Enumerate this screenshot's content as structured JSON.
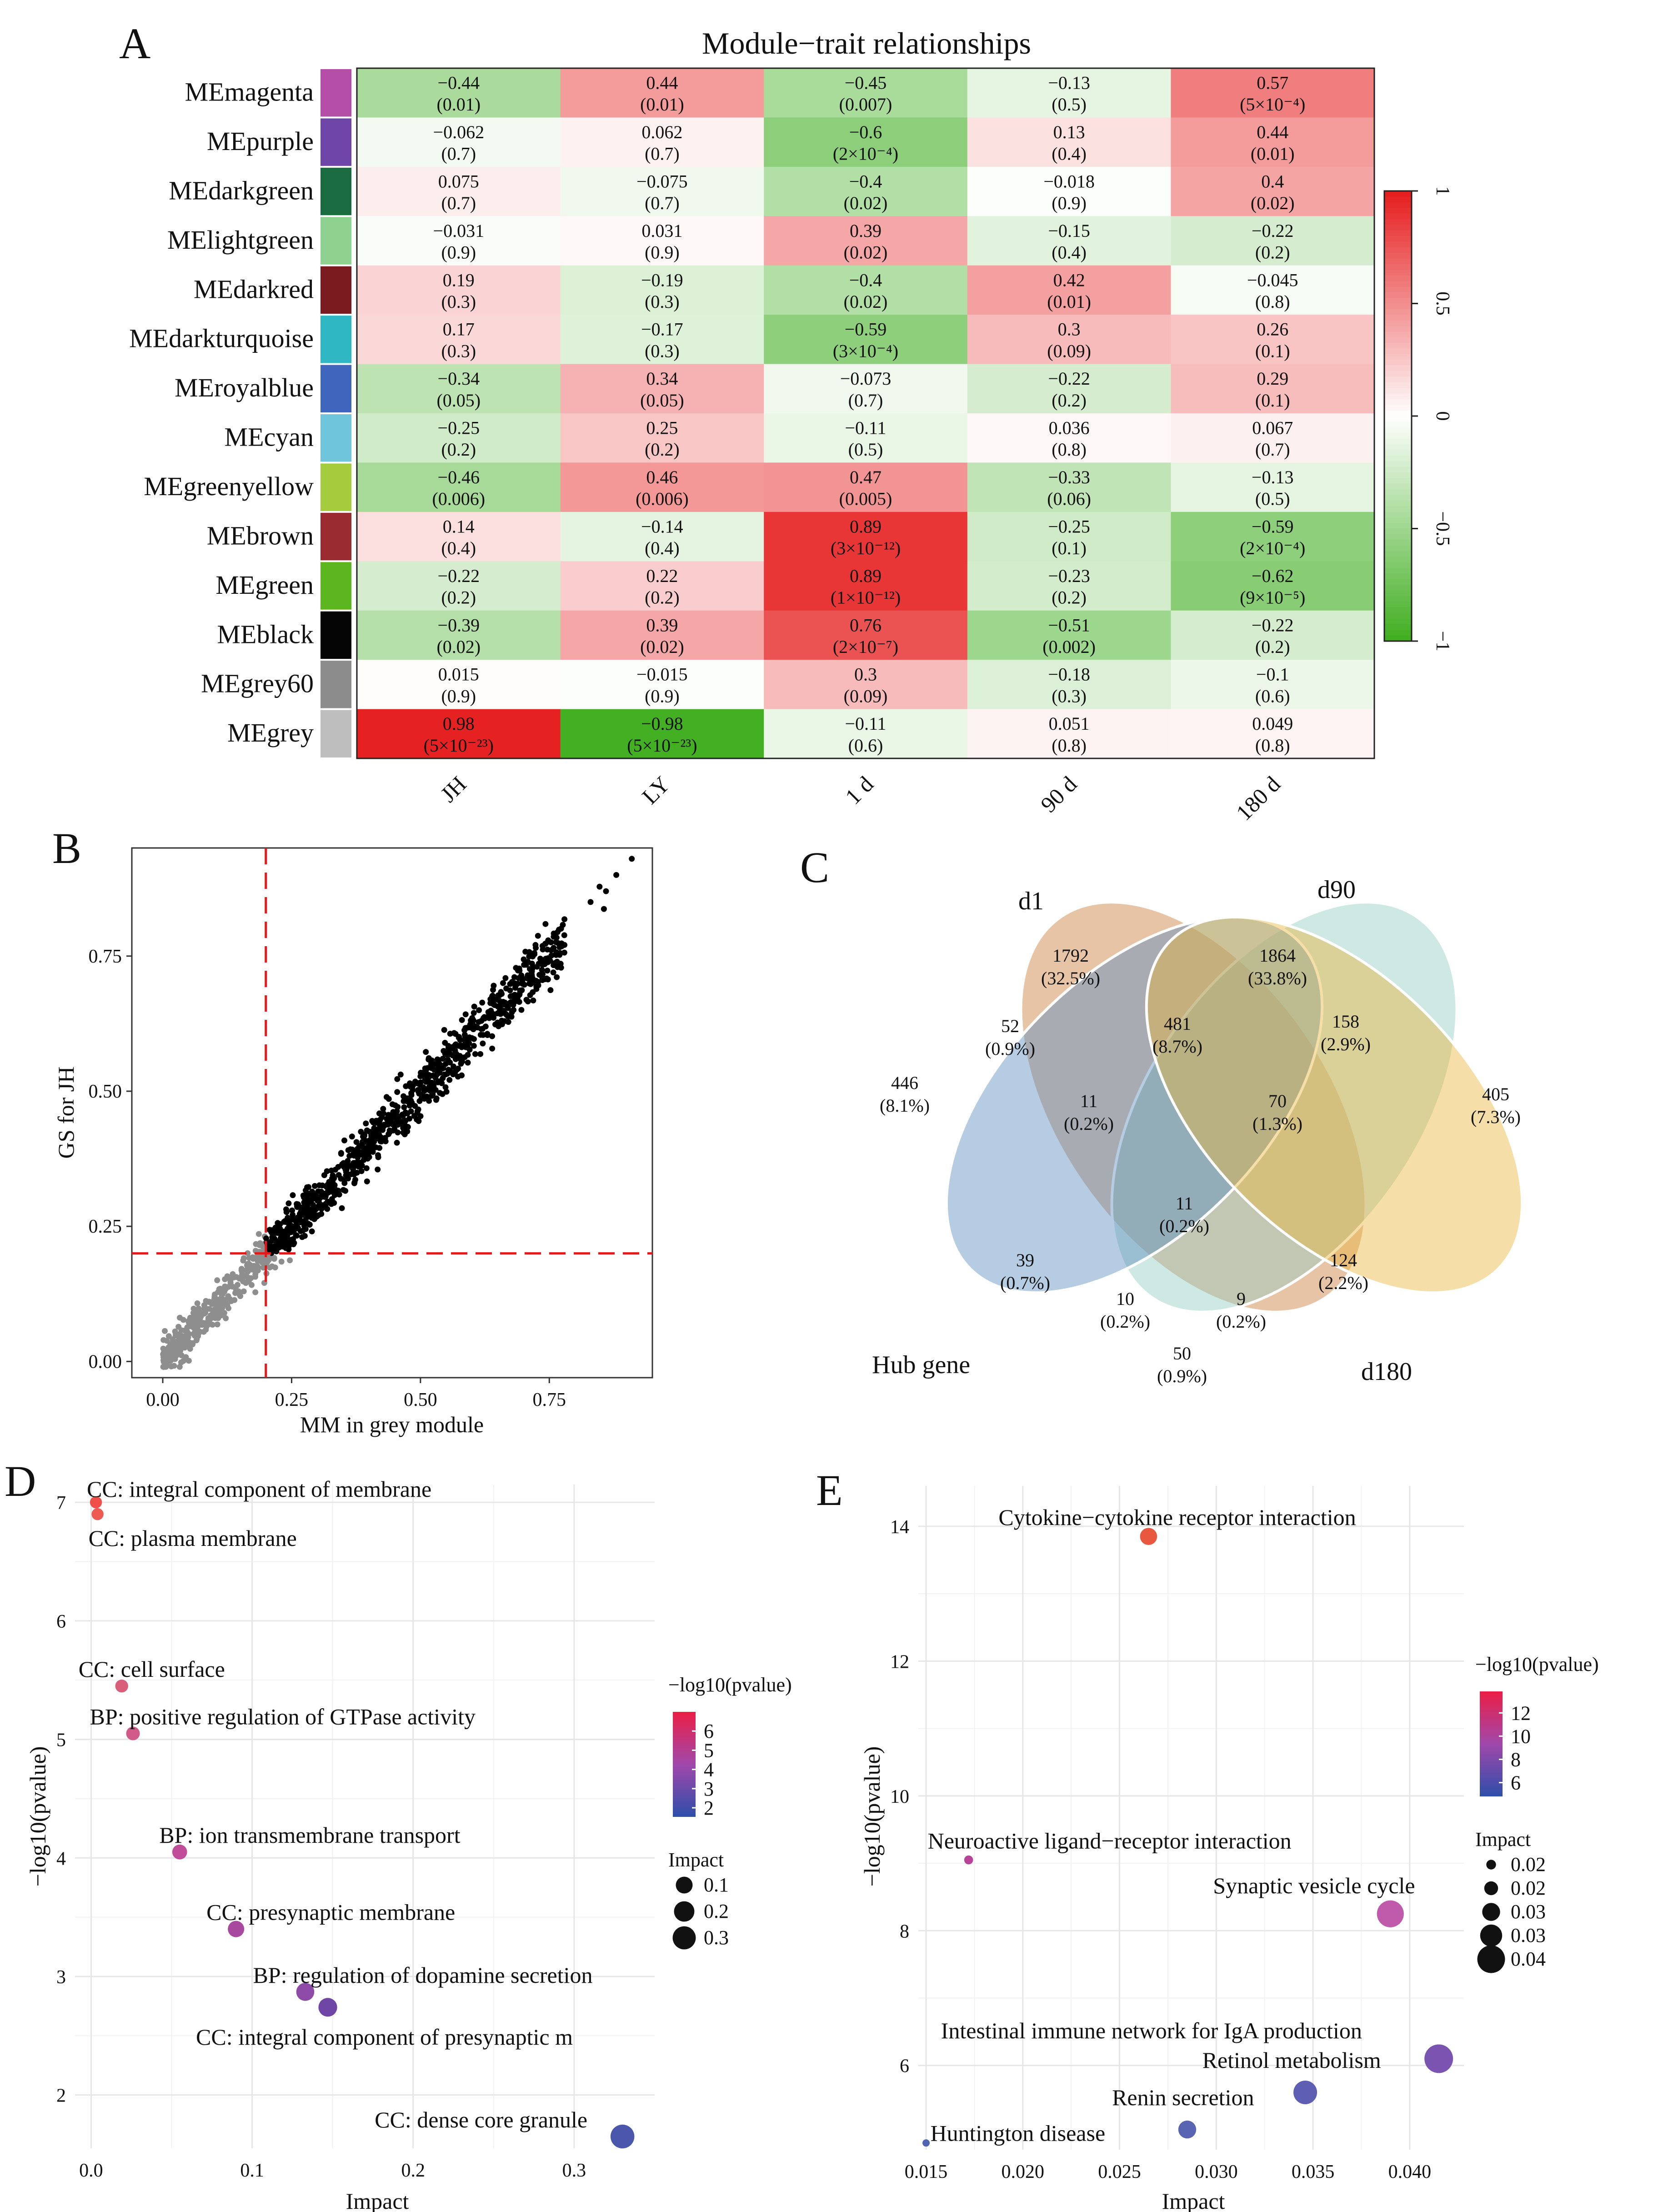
{
  "panels": {
    "A": {
      "letter": "A",
      "chart_data": {
        "type": "heatmap",
        "title": "Module−trait relationships",
        "rows": [
          "MEmagenta",
          "MEpurple",
          "MEdarkgreen",
          "MElightgreen",
          "MEdarkred",
          "MEdarkturquoise",
          "MEroyalblue",
          "MEcyan",
          "MEgreenyellow",
          "MEbrown",
          "MEgreen",
          "MEblack",
          "MEgrey60",
          "MEgrey"
        ],
        "row_colors": [
          "#b44ea7",
          "#6f45a7",
          "#1a6b3f",
          "#8fd18f",
          "#7a1b1f",
          "#2fb8c4",
          "#3f66bc",
          "#6fc6dc",
          "#a4cc3c",
          "#9a2b31",
          "#5cb61f",
          "#050505",
          "#8c8c8c",
          "#bebebe"
        ],
        "columns": [
          "JH",
          "LY",
          "1 d",
          "90 d",
          "180 d"
        ],
        "values": [
          [
            -0.44,
            0.44,
            -0.45,
            -0.13,
            0.57
          ],
          [
            -0.062,
            0.062,
            -0.6,
            0.13,
            0.44
          ],
          [
            0.075,
            -0.075,
            -0.4,
            -0.018,
            0.4
          ],
          [
            -0.031,
            0.031,
            0.39,
            -0.15,
            -0.22
          ],
          [
            0.19,
            -0.19,
            -0.4,
            0.42,
            -0.045
          ],
          [
            0.17,
            -0.17,
            -0.59,
            0.3,
            0.26
          ],
          [
            -0.34,
            0.34,
            -0.073,
            -0.22,
            0.29
          ],
          [
            -0.25,
            0.25,
            -0.11,
            0.036,
            0.067
          ],
          [
            -0.46,
            0.46,
            0.47,
            -0.33,
            -0.13
          ],
          [
            0.14,
            -0.14,
            0.89,
            -0.25,
            -0.59
          ],
          [
            -0.22,
            0.22,
            0.89,
            -0.23,
            -0.62
          ],
          [
            -0.39,
            0.39,
            0.76,
            -0.51,
            -0.22
          ],
          [
            0.015,
            -0.015,
            0.3,
            -0.18,
            -0.1
          ],
          [
            0.98,
            -0.98,
            -0.11,
            0.051,
            0.049
          ]
        ],
        "value_labels": [
          [
            "−0.44",
            "0.44",
            "−0.45",
            "−0.13",
            "0.57"
          ],
          [
            "−0.062",
            "0.062",
            "−0.6",
            "0.13",
            "0.44"
          ],
          [
            "0.075",
            "−0.075",
            "−0.4",
            "−0.018",
            "0.4"
          ],
          [
            "−0.031",
            "0.031",
            "0.39",
            "−0.15",
            "−0.22"
          ],
          [
            "0.19",
            "−0.19",
            "−0.4",
            "0.42",
            "−0.045"
          ],
          [
            "0.17",
            "−0.17",
            "−0.59",
            "0.3",
            "0.26"
          ],
          [
            "−0.34",
            "0.34",
            "−0.073",
            "−0.22",
            "0.29"
          ],
          [
            "−0.25",
            "0.25",
            "−0.11",
            "0.036",
            "0.067"
          ],
          [
            "−0.46",
            "0.46",
            "0.47",
            "−0.33",
            "−0.13"
          ],
          [
            "0.14",
            "−0.14",
            "0.89",
            "−0.25",
            "−0.59"
          ],
          [
            "−0.22",
            "0.22",
            "0.89",
            "−0.23",
            "−0.62"
          ],
          [
            "−0.39",
            "0.39",
            "0.76",
            "−0.51",
            "−0.22"
          ],
          [
            "0.015",
            "−0.015",
            "0.3",
            "−0.18",
            "−0.1"
          ],
          [
            "0.98",
            "−0.98",
            "−0.11",
            "0.051",
            "0.049"
          ]
        ],
        "pvalues": [
          [
            "(0.01)",
            "(0.01)",
            "(0.007)",
            "(0.5)",
            "(5×10⁻⁴)"
          ],
          [
            "(0.7)",
            "(0.7)",
            "(2×10⁻⁴)",
            "(0.4)",
            "(0.01)"
          ],
          [
            "(0.7)",
            "(0.7)",
            "(0.02)",
            "(0.9)",
            "(0.02)"
          ],
          [
            "(0.9)",
            "(0.9)",
            "(0.02)",
            "(0.4)",
            "(0.2)"
          ],
          [
            "(0.3)",
            "(0.3)",
            "(0.02)",
            "(0.01)",
            "(0.8)"
          ],
          [
            "(0.3)",
            "(0.3)",
            "(3×10⁻⁴)",
            "(0.09)",
            "(0.1)"
          ],
          [
            "(0.05)",
            "(0.05)",
            "(0.7)",
            "(0.2)",
            "(0.1)"
          ],
          [
            "(0.2)",
            "(0.2)",
            "(0.5)",
            "(0.8)",
            "(0.7)"
          ],
          [
            "(0.006)",
            "(0.006)",
            "(0.005)",
            "(0.06)",
            "(0.5)"
          ],
          [
            "(0.4)",
            "(0.4)",
            "(3×10⁻¹²)",
            "(0.1)",
            "(2×10⁻⁴)"
          ],
          [
            "(0.2)",
            "(0.2)",
            "(1×10⁻¹²)",
            "(0.2)",
            "(9×10⁻⁵)"
          ],
          [
            "(0.02)",
            "(0.02)",
            "(2×10⁻⁷)",
            "(0.002)",
            "(0.2)"
          ],
          [
            "(0.9)",
            "(0.9)",
            "(0.09)",
            "(0.3)",
            "(0.6)"
          ],
          [
            "(5×10⁻²³)",
            "(5×10⁻²³)",
            "(0.6)",
            "(0.8)",
            "(0.8)"
          ]
        ],
        "color_scale": {
          "min": -1,
          "max": 1,
          "low": "#3fae1f",
          "mid": "#ffffff",
          "high": "#e51c1c",
          "ticks": [
            "−1",
            "−0.5",
            "0",
            "0.5",
            "1"
          ],
          "tick_values": [
            -1,
            -0.5,
            0,
            0.5,
            1
          ]
        }
      }
    },
    "B": {
      "letter": "B",
      "chart_data": {
        "type": "scatter",
        "xlabel": "MM in grey module",
        "ylabel": "GS for JH",
        "xlim": [
          -0.06,
          0.95
        ],
        "ylim": [
          -0.03,
          0.95
        ],
        "xticks": [
          "0.00",
          "0.25",
          "0.50",
          "0.75"
        ],
        "xtick_values": [
          0,
          0.25,
          0.5,
          0.75
        ],
        "yticks": [
          "0.00",
          "0.25",
          "0.50",
          "0.75"
        ],
        "ytick_values": [
          0,
          0.25,
          0.5,
          0.75
        ],
        "threshold_x": 0.2,
        "threshold_y": 0.2,
        "trend": {
          "slope": 1.0,
          "intercept": 0.0,
          "spread": 0.05
        },
        "point_count": 1200,
        "colors": {
          "above": "#000000",
          "below": "#8e8e8e",
          "threshold": "#e31a1c"
        }
      }
    },
    "C": {
      "letter": "C",
      "sets": [
        "d1",
        "d90",
        "d180",
        "Hub gene"
      ],
      "regions": [
        {
          "set": "d1 only",
          "count": "1792",
          "pct": "(32.5%)"
        },
        {
          "set": "d90 only",
          "count": "1864",
          "pct": "(33.8%)"
        },
        {
          "set": "d180 only",
          "count": "405",
          "pct": "(7.3%)"
        },
        {
          "set": "Hub only",
          "count": "446",
          "pct": "(8.1%)"
        },
        {
          "set": "d1 & d90",
          "count": "481",
          "pct": "(8.7%)"
        },
        {
          "set": "Hub & d1",
          "count": "52",
          "pct": "(0.9%)"
        },
        {
          "set": "d90 & d180",
          "count": "158",
          "pct": "(2.9%)"
        },
        {
          "set": "Hub & d1 & d90",
          "count": "11",
          "pct": "(0.2%)"
        },
        {
          "set": "d1 & d90 & d180",
          "count": "70",
          "pct": "(1.3%)"
        },
        {
          "set": "all",
          "count": "11",
          "pct": "(0.2%)"
        },
        {
          "set": "Hub & d90",
          "count": "39",
          "pct": "(0.7%)"
        },
        {
          "set": "d1 & d180",
          "count": "124",
          "pct": "(2.2%)"
        },
        {
          "set": "Hub & d90 & d180",
          "count": "10",
          "pct": "(0.2%)"
        },
        {
          "set": "Hub & d1 & d180",
          "count": "9",
          "pct": "(0.2%)"
        },
        {
          "set": "Hub & d180",
          "count": "50",
          "pct": "(0.9%)"
        }
      ],
      "colors": [
        "#5b8fbf",
        "#e9b53f",
        "#93ccc0",
        "#cc7d3a"
      ]
    },
    "D": {
      "letter": "D",
      "chart_data": {
        "type": "scatter",
        "xlabel": "Impact",
        "ylabel": "−log10(pvalue)",
        "xlim": [
          -0.01,
          0.35
        ],
        "ylim": [
          1.55,
          7.15
        ],
        "xticks": [
          "0.0",
          "0.1",
          "0.2",
          "0.3"
        ],
        "xtick_values": [
          0,
          0.1,
          0.2,
          0.3
        ],
        "yticks": [
          "2",
          "3",
          "4",
          "5",
          "6",
          "7"
        ],
        "ytick_values": [
          2,
          3,
          4,
          5,
          6,
          7
        ],
        "points": [
          {
            "label": "CC: integral component of membrane",
            "x": 0.003,
            "y": 7.0,
            "impact": 0.02,
            "color": "#f0504a"
          },
          {
            "label": "CC: plasma membrane",
            "x": 0.004,
            "y": 6.9,
            "impact": 0.02,
            "color": "#ee5a52"
          },
          {
            "label": "CC: cell surface",
            "x": 0.019,
            "y": 5.45,
            "impact": 0.03,
            "color": "#d85e7a"
          },
          {
            "label": "BP: positive regulation of GTPase activity",
            "x": 0.026,
            "y": 5.05,
            "impact": 0.04,
            "color": "#d25a8a"
          },
          {
            "label": "BP: ion transmembrane transport",
            "x": 0.055,
            "y": 4.05,
            "impact": 0.06,
            "color": "#c04c9a"
          },
          {
            "label": "CC: presynaptic membrane",
            "x": 0.09,
            "y": 3.4,
            "impact": 0.09,
            "color": "#a8489e"
          },
          {
            "label": "BP: regulation of dopamine secretion",
            "x": 0.133,
            "y": 2.87,
            "impact": 0.13,
            "color": "#8d4aa6"
          },
          {
            "label": "CC: integral component of presynaptic m",
            "x": 0.147,
            "y": 2.74,
            "impact": 0.15,
            "color": "#6f46a6"
          },
          {
            "label": "CC: dense core granule",
            "x": 0.33,
            "y": 1.65,
            "impact": 0.33,
            "color": "#4a57ac"
          }
        ],
        "legend": {
          "color_title": "−log10(pvalue)",
          "color_ticks": [
            "6",
            "5",
            "4",
            "3",
            "2"
          ],
          "color_tick_values": [
            6,
            5,
            4,
            3,
            2
          ],
          "color_range": [
            1.55,
            7.0
          ],
          "size_title": "Impact",
          "size_items": [
            "0.1",
            "0.2",
            "0.3"
          ],
          "size_values": [
            0.1,
            0.2,
            0.3
          ]
        }
      }
    },
    "E": {
      "letter": "E",
      "chart_data": {
        "type": "scatter",
        "xlabel": "Impact",
        "ylabel": "−log10(pvalue)",
        "xlim": [
          0.0146,
          0.0428
        ],
        "ylim": [
          4.75,
          14.6
        ],
        "xticks": [
          "0.015",
          "0.020",
          "0.025",
          "0.030",
          "0.035",
          "0.040"
        ],
        "xtick_values": [
          0.015,
          0.02,
          0.025,
          0.03,
          0.035,
          0.04
        ],
        "yticks": [
          "6",
          "8",
          "10",
          "12",
          "14"
        ],
        "ytick_values": [
          6,
          8,
          10,
          12,
          14
        ],
        "points": [
          {
            "label": "Cytokine−cytokine receptor interaction",
            "x": 0.0265,
            "y": 13.85,
            "impact": 0.027,
            "color": "#e9573f"
          },
          {
            "label": "Neuroactive ligand−receptor interaction",
            "x": 0.0172,
            "y": 9.05,
            "impact": 0.017,
            "color": "#b8449a"
          },
          {
            "label": "Synaptic vesicle cycle",
            "x": 0.039,
            "y": 8.25,
            "impact": 0.039,
            "color": "#c05aaa"
          },
          {
            "label": "Intestinal immune network for IgA production",
            "x": 0.0415,
            "y": 6.1,
            "impact": 0.041,
            "color": "#7a54b0"
          },
          {
            "label": "Retinol metabolism",
            "x": 0.0415,
            "y": 6.1,
            "impact": 0.041,
            "color": "#7a54b0"
          },
          {
            "label": "Renin secretion",
            "x": 0.0346,
            "y": 5.6,
            "impact": 0.035,
            "color": "#5e5fb2"
          },
          {
            "label": "Huntington disease",
            "x": 0.0285,
            "y": 5.05,
            "impact": 0.028,
            "color": "#5964b3"
          },
          {
            "label": "",
            "x": 0.015,
            "y": 4.85,
            "impact": 0.015,
            "color": "#5064b4"
          }
        ],
        "legend": {
          "color_title": "−log10(pvalue)",
          "color_ticks": [
            "12",
            "10",
            "8",
            "6"
          ],
          "color_tick_values": [
            12,
            10,
            8,
            6
          ],
          "color_range": [
            4.85,
            13.85
          ],
          "size_title": "Impact",
          "size_items": [
            "0.02",
            "0.02",
            "0.03",
            "0.03",
            "0.04"
          ],
          "size_values": [
            0.018,
            0.023,
            0.028,
            0.033,
            0.04
          ]
        }
      }
    }
  }
}
